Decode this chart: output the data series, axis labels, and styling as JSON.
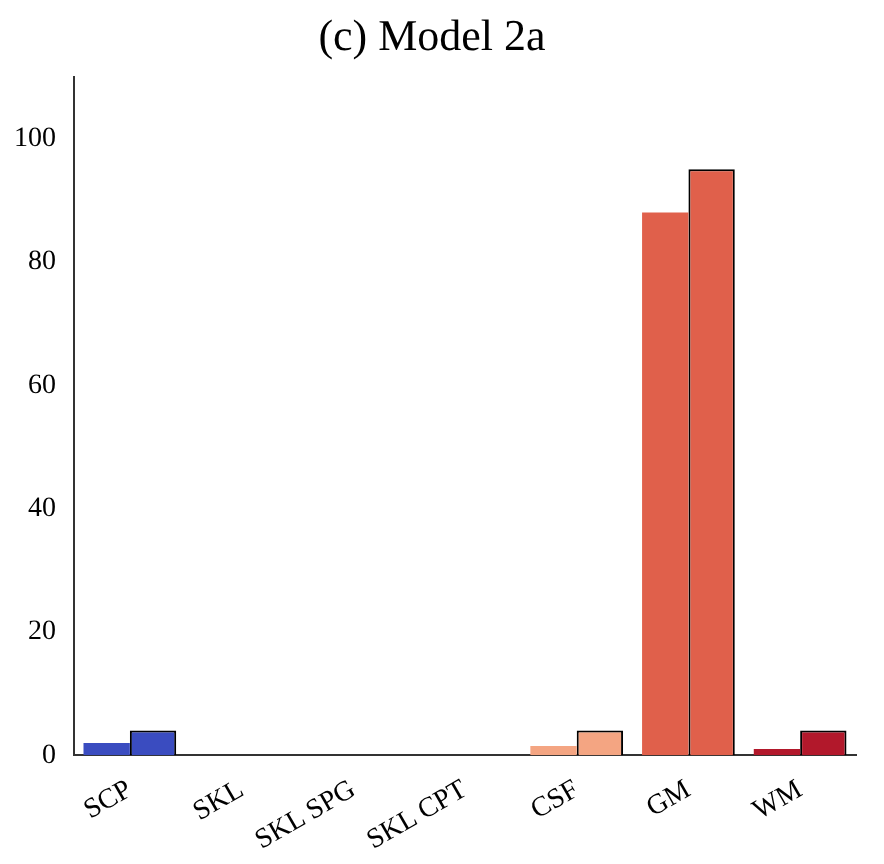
{
  "chart_data": {
    "type": "bar",
    "title": "(c) Model 2a",
    "categories": [
      "SCP",
      "SKL",
      "SKL SPG",
      "SKL CPT",
      "CSF",
      "GM",
      "WM"
    ],
    "series": [
      {
        "colors": [
          "#3a4cc0",
          "#3a4cc0",
          "#3a4cc0",
          "#3a4cc0",
          "#f4a582",
          "#e0604b",
          "#b2182b"
        ],
        "values": [
          2,
          0,
          0,
          0,
          1.5,
          88,
          1
        ]
      },
      {
        "colors": [
          "#3a4cc0",
          "#3a4cc0",
          "#3a4cc0",
          "#3a4cc0",
          "#f4a582",
          "#e0604b",
          "#b2182b"
        ],
        "values": [
          4,
          0,
          0,
          0,
          4,
          95,
          4
        ]
      }
    ],
    "ylim": [
      0,
      110
    ],
    "yticks": [
      0,
      20,
      40,
      60,
      80,
      100
    ],
    "grid": false,
    "legend": false
  }
}
